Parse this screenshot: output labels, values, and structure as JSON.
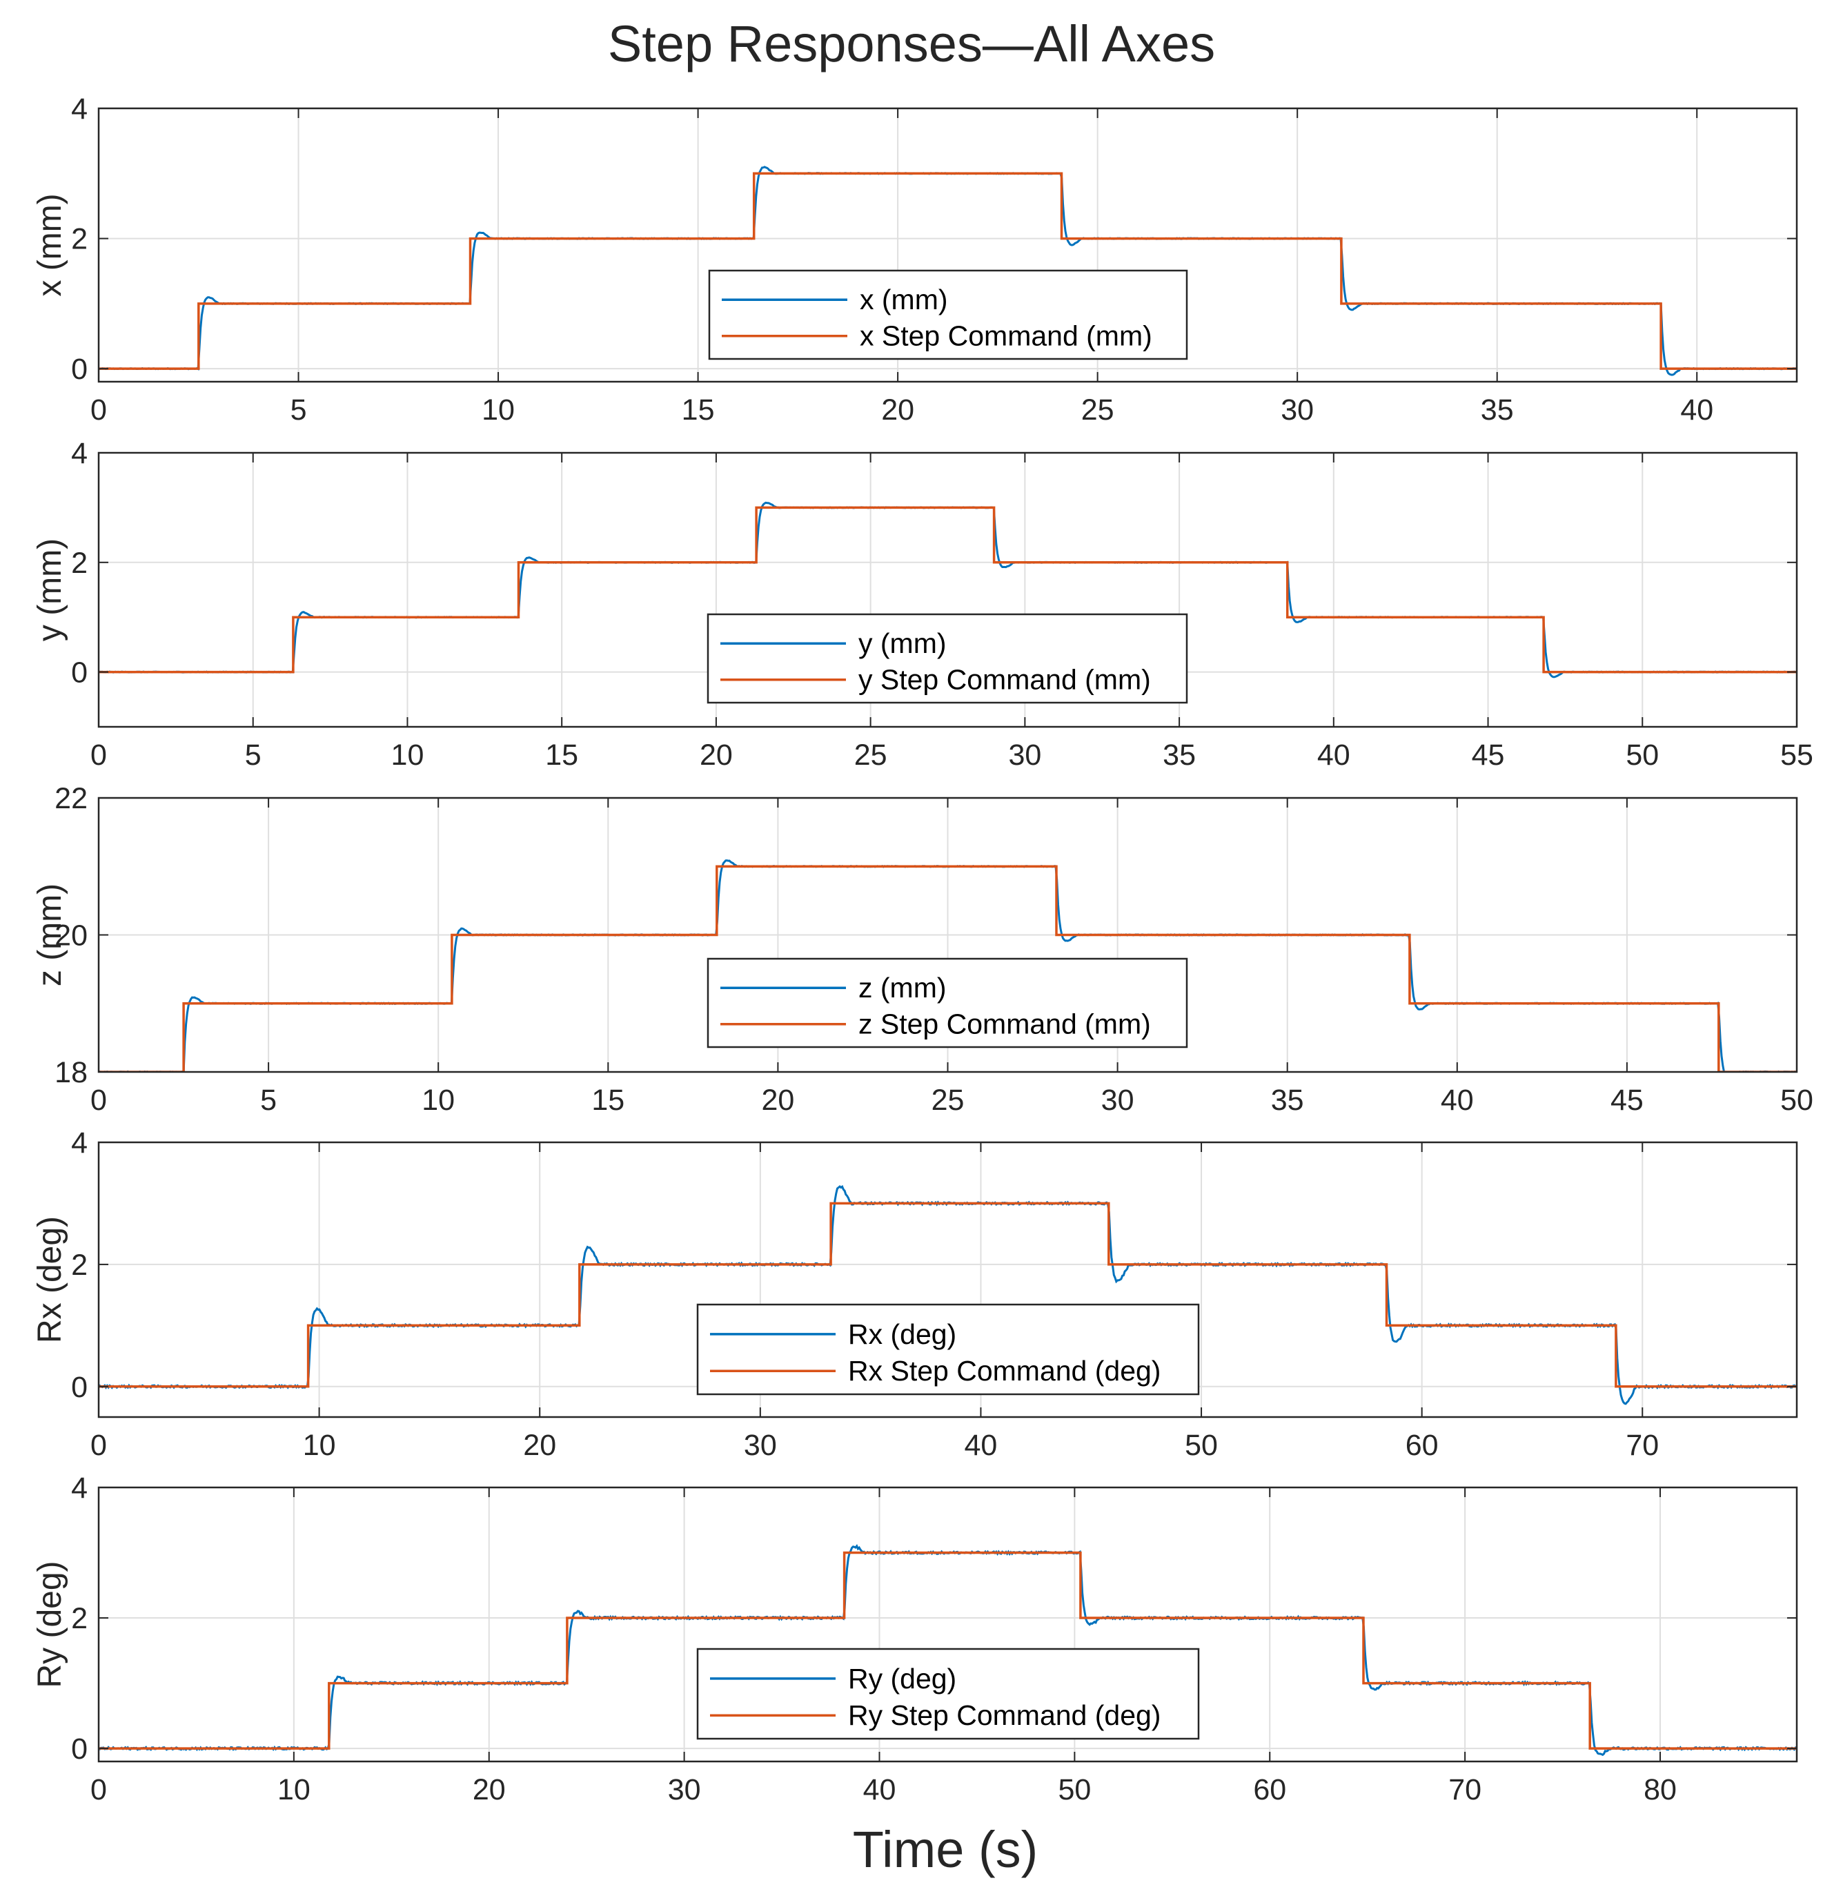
{
  "title": "Step Responses—All Axes",
  "xlabel": "Time (s)",
  "colors": {
    "response": "#0072BD",
    "command": "#D95319",
    "grid": "#dfdfdf",
    "axis": "#262626"
  },
  "chart_data": [
    {
      "type": "line",
      "ylabel": "x (mm)",
      "xlim": [
        0,
        42.5
      ],
      "ylim": [
        -0.2,
        4
      ],
      "xticks": [
        0,
        5,
        10,
        15,
        20,
        25,
        30,
        35,
        40
      ],
      "yticks": [
        0,
        2,
        4
      ],
      "legend": [
        "x (mm)",
        "x Step Command (mm)"
      ],
      "legend_location": "center",
      "steps": [
        [
          2.5,
          1
        ],
        [
          9.3,
          2
        ],
        [
          16.4,
          3
        ],
        [
          24.1,
          2
        ],
        [
          31.1,
          1
        ],
        [
          39.1,
          0
        ]
      ],
      "initial": 0,
      "overshoot": 0.19,
      "series": [
        {
          "name": "x (mm)",
          "kind": "response"
        },
        {
          "name": "x Step Command (mm)",
          "kind": "command"
        }
      ]
    },
    {
      "type": "line",
      "ylabel": "y (mm)",
      "xlim": [
        0,
        55
      ],
      "ylim": [
        -1,
        4
      ],
      "xticks": [
        0,
        5,
        10,
        15,
        20,
        25,
        30,
        35,
        40,
        45,
        50,
        55
      ],
      "yticks": [
        0,
        2,
        4
      ],
      "legend": [
        "y (mm)",
        "y Step Command (mm)"
      ],
      "legend_location": "south",
      "steps": [
        [
          6.3,
          1
        ],
        [
          13.6,
          2
        ],
        [
          21.3,
          3
        ],
        [
          29.0,
          2
        ],
        [
          38.5,
          1
        ],
        [
          46.8,
          0
        ]
      ],
      "initial": 0,
      "overshoot": 0.18,
      "series": [
        {
          "name": "y (mm)",
          "kind": "response"
        },
        {
          "name": "y Step Command (mm)",
          "kind": "command"
        }
      ]
    },
    {
      "type": "line",
      "ylabel": "z (mm)",
      "xlim": [
        0,
        50
      ],
      "ylim": [
        18,
        22
      ],
      "xticks": [
        0,
        5,
        10,
        15,
        20,
        25,
        30,
        35,
        40,
        45,
        50
      ],
      "yticks": [
        18,
        20,
        22
      ],
      "legend": [
        "z (mm)",
        "z Step Command (mm)"
      ],
      "legend_location": "south",
      "steps": [
        [
          2.5,
          19
        ],
        [
          10.4,
          20
        ],
        [
          18.2,
          21
        ],
        [
          28.2,
          20
        ],
        [
          38.6,
          19
        ],
        [
          47.7,
          18
        ]
      ],
      "initial": 18,
      "overshoot": 0.18,
      "series": [
        {
          "name": "z (mm)",
          "kind": "response"
        },
        {
          "name": "z Step Command (mm)",
          "kind": "command"
        }
      ]
    },
    {
      "type": "line",
      "ylabel": "Rx (deg)",
      "xlim": [
        0,
        77
      ],
      "ylim": [
        -0.5,
        4
      ],
      "xticks": [
        0,
        10,
        20,
        30,
        40,
        50,
        60,
        70
      ],
      "yticks": [
        0,
        2,
        4
      ],
      "legend": [
        "Rx (deg)",
        "Rx Step Command (deg)"
      ],
      "legend_location": "south",
      "steps": [
        [
          9.5,
          1
        ],
        [
          21.8,
          2
        ],
        [
          33.2,
          3
        ],
        [
          45.8,
          2
        ],
        [
          58.4,
          1
        ],
        [
          68.8,
          0
        ]
      ],
      "initial": 0,
      "overshoot": 0.5,
      "series": [
        {
          "name": "Rx (deg)",
          "kind": "response"
        },
        {
          "name": "Rx Step Command (deg)",
          "kind": "command"
        }
      ]
    },
    {
      "type": "line",
      "ylabel": "Ry (deg)",
      "xlim": [
        0,
        87
      ],
      "ylim": [
        -0.2,
        4
      ],
      "xticks": [
        0,
        10,
        20,
        30,
        40,
        50,
        60,
        70,
        80
      ],
      "yticks": [
        0,
        2,
        4
      ],
      "legend": [
        "Ry (deg)",
        "Ry Step Command (deg)"
      ],
      "legend_location": "south",
      "steps": [
        [
          11.8,
          1
        ],
        [
          24.0,
          2
        ],
        [
          38.2,
          3
        ],
        [
          50.3,
          2
        ],
        [
          64.8,
          1
        ],
        [
          76.4,
          0
        ]
      ],
      "initial": 0,
      "overshoot": 0.19,
      "series": [
        {
          "name": "Ry (deg)",
          "kind": "response"
        },
        {
          "name": "Ry Step Command (deg)",
          "kind": "command"
        }
      ]
    }
  ]
}
